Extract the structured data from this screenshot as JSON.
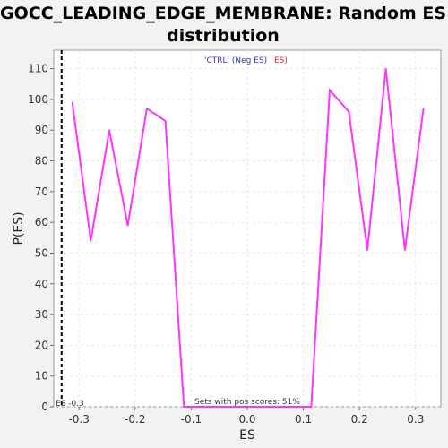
{
  "chart_data": {
    "type": "line",
    "title_line1": "GOCC_LEADING_EDGE_MEMBRANE: Random ES",
    "title_line2": "distribution",
    "xlabel": "ES",
    "ylabel": "P(ES)",
    "xlim": [
      -0.345,
      0.345
    ],
    "ylim": [
      0,
      116
    ],
    "xticks": [
      -0.3,
      -0.2,
      -0.1,
      0.0,
      0.1,
      0.2,
      0.3
    ],
    "xtick_labels": [
      "-0.3",
      "-0.2",
      "-0.1",
      "0.0",
      "0.1",
      "0.2",
      "0.3"
    ],
    "yticks": [
      0,
      10,
      20,
      30,
      40,
      50,
      60,
      70,
      80,
      90,
      100,
      110
    ],
    "grid": true,
    "legend": {
      "ctrl_text": "'CTRL' (Neg ES)",
      "ctrl_color": "#3333cc",
      "pos_text": "ES)",
      "pos_color": "#dd2222",
      "placement": "top-center"
    },
    "annotation_left": "ES -0.3",
    "annotation_bottom": "Sets with pos scores: 51%",
    "series": [
      {
        "color": "#ff33ff",
        "x": [
          -0.312,
          -0.279,
          -0.246,
          -0.213,
          -0.179,
          -0.146,
          -0.113,
          -0.08,
          -0.047,
          0.047,
          0.08,
          0.114,
          0.147,
          0.181,
          0.214,
          0.247,
          0.281,
          0.314
        ],
        "y": [
          99,
          54,
          90,
          59,
          97,
          93,
          0,
          0,
          0,
          0,
          0,
          0,
          103,
          96,
          51,
          110,
          51,
          97
        ]
      }
    ],
    "marker_line": {
      "x": -0.331,
      "style": "dashed",
      "color": "#000000"
    }
  }
}
